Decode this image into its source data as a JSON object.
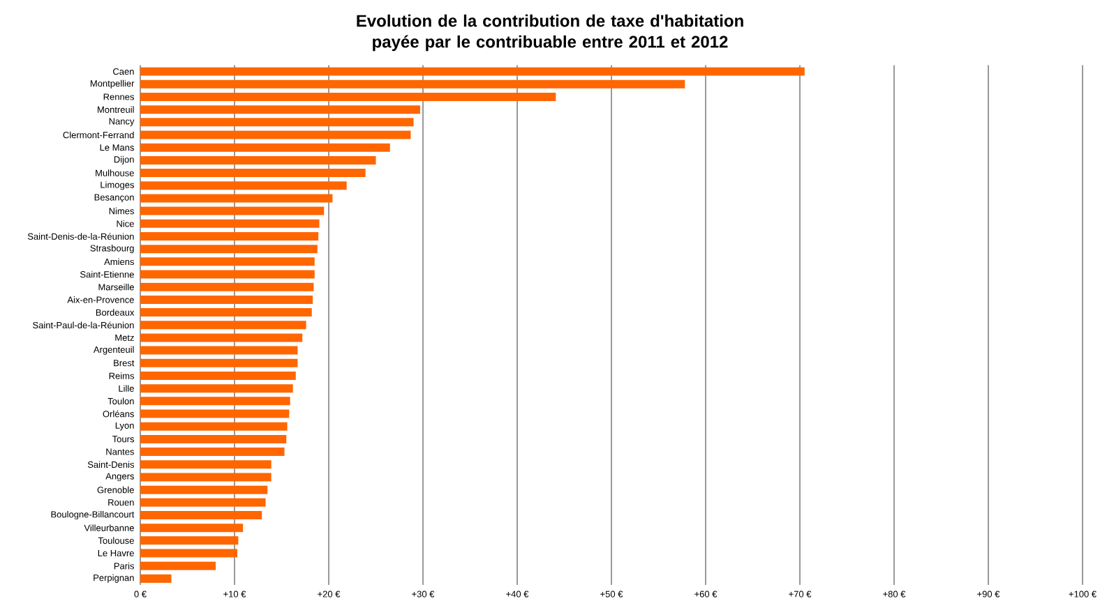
{
  "chart_data": {
    "type": "bar",
    "orientation": "horizontal",
    "title": "Evolution de la contribution de taxe d'habitation\npayée par le contribuable entre 2011 et 2012",
    "categories": [
      "Caen",
      "Montpellier",
      "Rennes",
      "Montreuil",
      "Nancy",
      "Clermont-Ferrand",
      "Le Mans",
      "Dijon",
      "Mulhouse",
      "Limoges",
      "Besançon",
      "Nimes",
      "Nice",
      "Saint-Denis-de-la-Réunion",
      "Strasbourg",
      "Amiens",
      "Saint-Etienne",
      "Marseille",
      "Aix-en-Provence",
      "Bordeaux",
      "Saint-Paul-de-la-Réunion",
      "Metz",
      "Argenteuil",
      "Brest",
      "Reims",
      "Lille",
      "Toulon",
      "Orléans",
      "Lyon",
      "Tours",
      "Nantes",
      "Saint-Denis",
      "Angers",
      "Grenoble",
      "Rouen",
      "Boulogne-Billancourt",
      "Villeurbanne",
      "Toulouse",
      "Le Havre",
      "Paris",
      "Perpignan"
    ],
    "values": [
      70.5,
      57.8,
      44.1,
      29.7,
      29.0,
      28.7,
      26.5,
      25.0,
      23.9,
      21.9,
      20.4,
      19.5,
      19.0,
      18.9,
      18.8,
      18.5,
      18.5,
      18.4,
      18.3,
      18.2,
      17.6,
      17.2,
      16.7,
      16.7,
      16.5,
      16.2,
      15.9,
      15.8,
      15.6,
      15.5,
      15.3,
      13.9,
      13.9,
      13.5,
      13.3,
      12.9,
      10.9,
      10.4,
      10.3,
      8.0,
      3.3
    ],
    "color": "#ff6600",
    "xlim": [
      0,
      100
    ],
    "xticks": [
      {
        "value": 0,
        "label": "0 €"
      },
      {
        "value": 10,
        "label": "+10 €"
      },
      {
        "value": 20,
        "label": "+20 €"
      },
      {
        "value": 30,
        "label": "+30 €"
      },
      {
        "value": 40,
        "label": "+40 €"
      },
      {
        "value": 50,
        "label": "+50 €"
      },
      {
        "value": 60,
        "label": "+60 €"
      },
      {
        "value": 70,
        "label": "+70 €"
      },
      {
        "value": 80,
        "label": "+80 €"
      },
      {
        "value": 90,
        "label": "+90 €"
      },
      {
        "value": 100,
        "label": "+100 €"
      }
    ],
    "grid": "x"
  }
}
